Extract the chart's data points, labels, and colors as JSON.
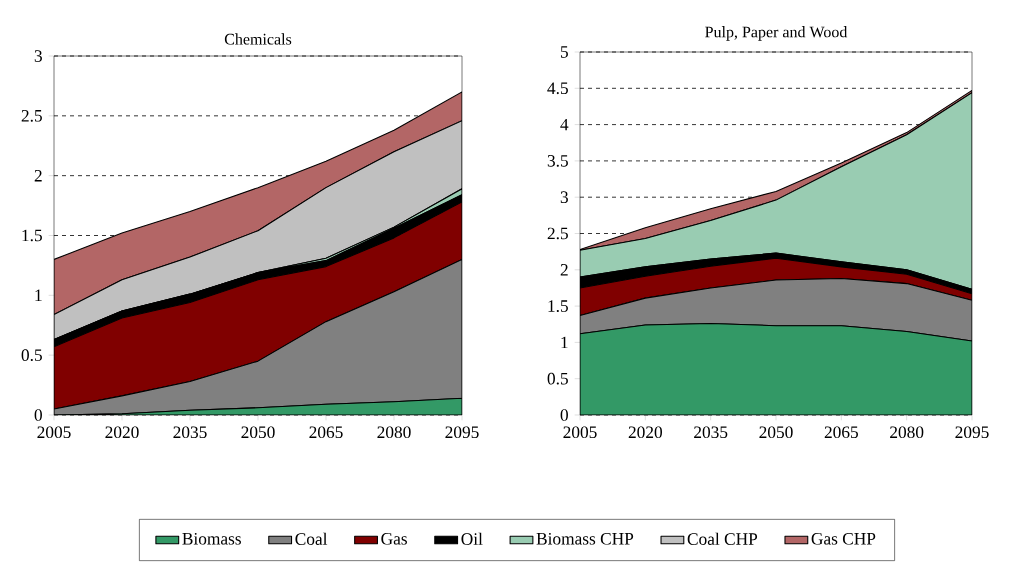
{
  "chart_data": [
    {
      "type": "area",
      "title": "Chemicals",
      "stacked": true,
      "grid": "y",
      "legend": "bottom",
      "categories": [
        "2005",
        "2020",
        "2035",
        "2050",
        "2065",
        "2080",
        "2095"
      ],
      "ylim": [
        0,
        3
      ],
      "yticks": [
        0,
        0.5,
        1,
        1.5,
        2,
        2.5,
        3
      ],
      "series": [
        {
          "name": "Biomass",
          "color": "#339966",
          "values": [
            0,
            0.01,
            0.04,
            0.06,
            0.09,
            0.11,
            0.14
          ]
        },
        {
          "name": "Coal",
          "color": "#808080",
          "values": [
            0.05,
            0.15,
            0.24,
            0.39,
            0.69,
            0.92,
            1.16
          ]
        },
        {
          "name": "Gas",
          "color": "#800000",
          "values": [
            0.52,
            0.65,
            0.66,
            0.68,
            0.46,
            0.45,
            0.48
          ]
        },
        {
          "name": "Oil",
          "color": "#000000",
          "values": [
            0.06,
            0.06,
            0.07,
            0.06,
            0.05,
            0.08,
            0.06
          ]
        },
        {
          "name": "Biomass CHP",
          "color": "#99ccb2",
          "values": [
            0,
            0,
            0,
            0,
            0.02,
            0.01,
            0.05
          ]
        },
        {
          "name": "Coal CHP",
          "color": "#c0c0c0",
          "values": [
            0.21,
            0.26,
            0.31,
            0.35,
            0.59,
            0.63,
            0.57
          ]
        },
        {
          "name": "Gas CHP",
          "color": "#b36666",
          "values": [
            0.46,
            0.39,
            0.38,
            0.36,
            0.22,
            0.18,
            0.24
          ]
        }
      ]
    },
    {
      "type": "area",
      "title": "Pulp, Paper and Wood",
      "stacked": true,
      "grid": "y",
      "categories": [
        "2005",
        "2020",
        "2035",
        "2050",
        "2065",
        "2080",
        "2095"
      ],
      "ylim": [
        0,
        5
      ],
      "yticks": [
        0,
        0.5,
        1,
        1.5,
        2,
        2.5,
        3,
        3.5,
        4,
        4.5,
        5
      ],
      "series": [
        {
          "color": "#339966",
          "values": [
            1.12,
            1.24,
            1.26,
            1.23,
            1.23,
            1.15,
            1.02
          ]
        },
        {
          "color": "#808080",
          "values": [
            0.25,
            0.37,
            0.49,
            0.63,
            0.65,
            0.66,
            0.56
          ]
        },
        {
          "color": "#800000",
          "values": [
            0.38,
            0.3,
            0.3,
            0.3,
            0.16,
            0.13,
            0.09
          ]
        },
        {
          "color": "#000000",
          "values": [
            0.15,
            0.13,
            0.1,
            0.07,
            0.07,
            0.06,
            0.06
          ]
        },
        {
          "color": "#99ccb2",
          "values": [
            0.37,
            0.39,
            0.53,
            0.73,
            1.31,
            1.86,
            2.71
          ]
        },
        {
          "color": "#b36666",
          "values": [
            0.01,
            0.15,
            0.16,
            0.12,
            0.05,
            0.03,
            0.03
          ]
        }
      ]
    }
  ]
}
